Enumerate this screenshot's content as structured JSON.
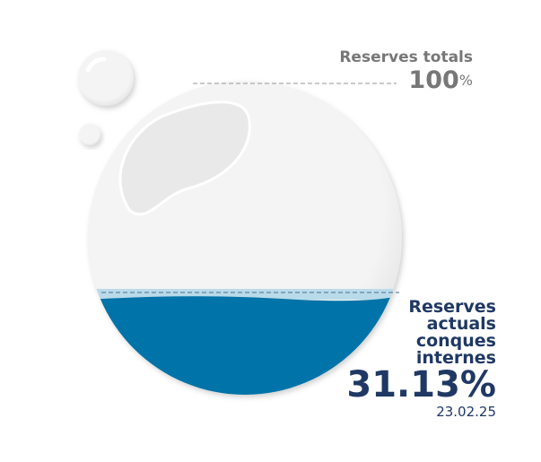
{
  "chart_data": {
    "type": "liquid",
    "total": {
      "label": "Reserves totals",
      "value": 100,
      "unit": "%"
    },
    "current": {
      "label": "Reserves actuals conques internes",
      "value": 31.13,
      "value_label": "31.13%",
      "date": "23.02.25"
    },
    "color": "#0073a8"
  }
}
